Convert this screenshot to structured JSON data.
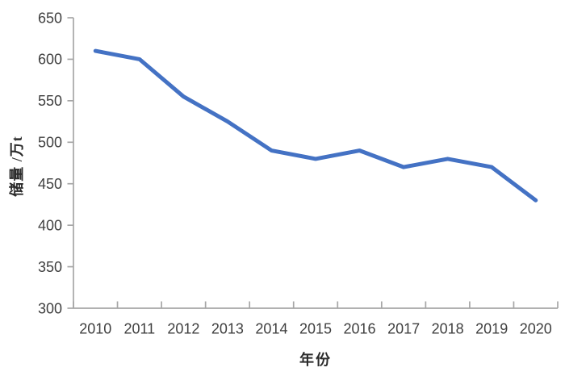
{
  "chart_data": {
    "type": "line",
    "title": "",
    "xlabel": "年份",
    "ylabel": "储量 /万t",
    "categories": [
      "2010",
      "2011",
      "2012",
      "2013",
      "2014",
      "2015",
      "2016",
      "2017",
      "2018",
      "2019",
      "2020"
    ],
    "series": [
      {
        "name": "储量",
        "values": [
          610,
          600,
          555,
          525,
          490,
          480,
          490,
          470,
          480,
          470,
          430
        ]
      }
    ],
    "ylim": [
      300,
      650
    ],
    "ytick_step": 50,
    "yticks": [
      300,
      350,
      400,
      450,
      500,
      550,
      600,
      650
    ],
    "grid": false,
    "legend_position": "none",
    "line_color": "#4472C4",
    "axis_color": "#A6A6A6",
    "tick_label_color": "#3f3f3f",
    "line_width": 5
  }
}
